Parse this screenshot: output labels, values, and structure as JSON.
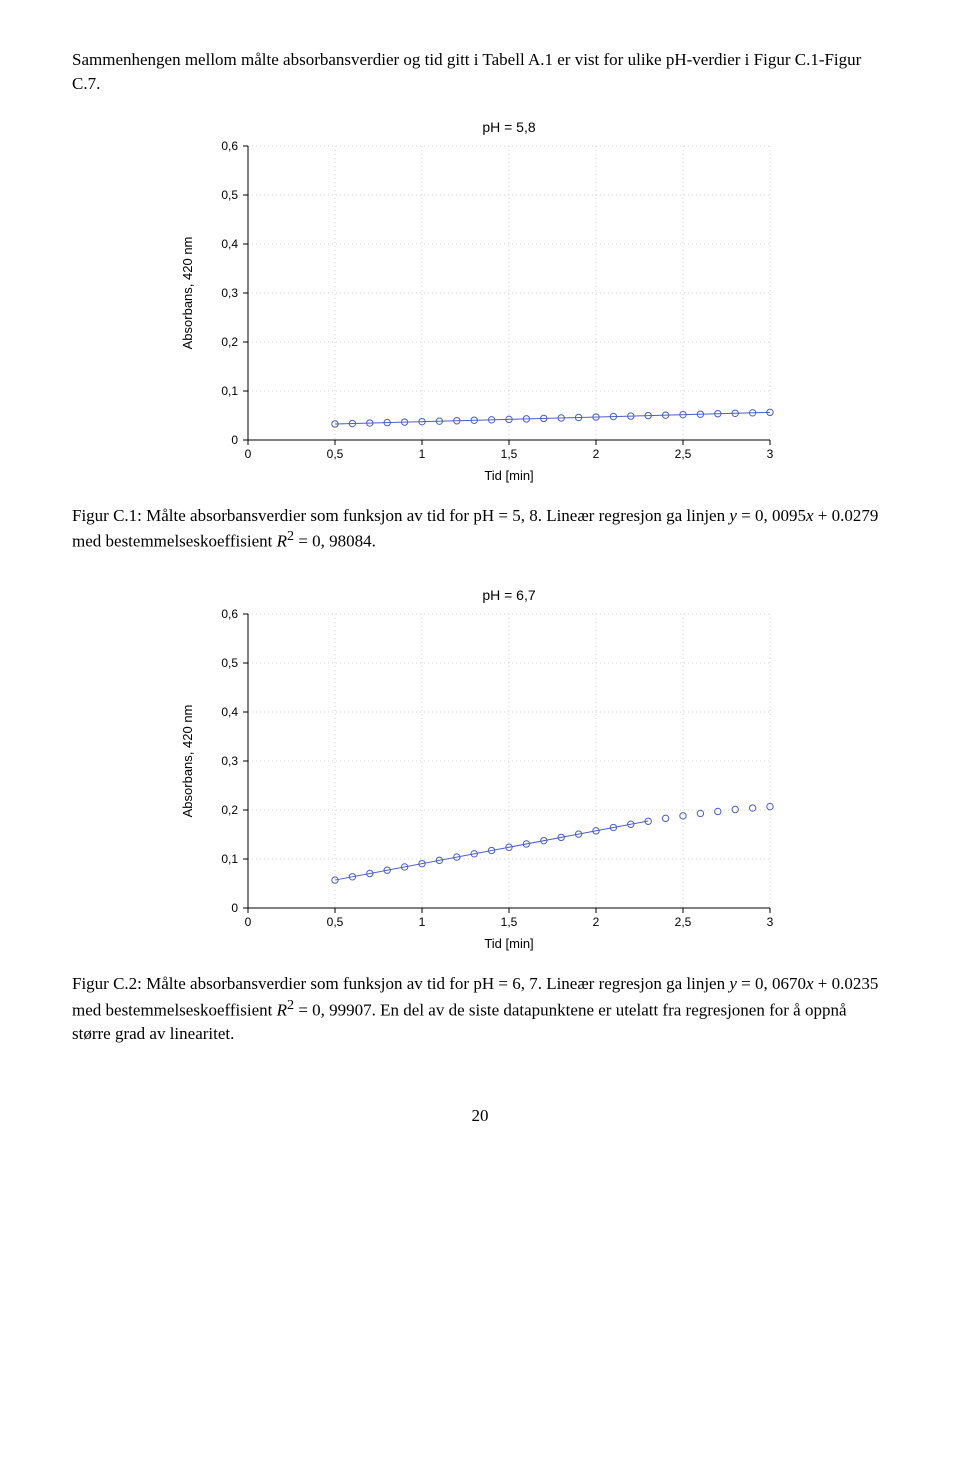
{
  "intro_text": "Sammenhengen mellom målte absorbansverdier og tid gitt i Tabell A.1 er vist for ulike pH-verdier i Figur C.1-Figur C.7.",
  "page_number": "20",
  "fig1": {
    "type": "scatter+line",
    "title": "pH = 5,8",
    "title_fontsize": 14,
    "xlabel": "Tid [min]",
    "ylabel": "Absorbans, 420 nm",
    "label_fontsize": 13,
    "tick_fontsize": 12,
    "xlim": [
      0,
      3
    ],
    "ylim": [
      0,
      0.6
    ],
    "xticks": [
      0,
      0.5,
      1,
      1.5,
      2,
      2.5,
      3
    ],
    "xtick_labels": [
      "0",
      "0,5",
      "1",
      "1,5",
      "2",
      "2,5",
      "3"
    ],
    "yticks": [
      0,
      0.1,
      0.2,
      0.3,
      0.4,
      0.5,
      0.6
    ],
    "ytick_labels": [
      "0",
      "0,1",
      "0,2",
      "0,3",
      "0,4",
      "0,5",
      "0,6"
    ],
    "marker_color": "#4a5ec8",
    "marker_radius": 3.2,
    "line_color": "#4a5ec8",
    "line_width": 1,
    "grid_color": "#d2d2d2",
    "axis_color": "#000000",
    "background_color": "#ffffff",
    "x": [
      0.5,
      0.6,
      0.7,
      0.8,
      0.9,
      1.0,
      1.1,
      1.2,
      1.3,
      1.4,
      1.5,
      1.6,
      1.7,
      1.8,
      1.9,
      2.0,
      2.1,
      2.2,
      2.3,
      2.4,
      2.5,
      2.6,
      2.7,
      2.8,
      2.9,
      3.0
    ],
    "y": [
      0.0327,
      0.0336,
      0.0346,
      0.0355,
      0.0365,
      0.0374,
      0.0384,
      0.0393,
      0.0403,
      0.0412,
      0.0422,
      0.0431,
      0.0441,
      0.045,
      0.046,
      0.0469,
      0.0479,
      0.0488,
      0.0498,
      0.0507,
      0.0517,
      0.0526,
      0.0536,
      0.0545,
      0.0555,
      0.0564
    ],
    "fit_slope": 0.0095,
    "fit_intercept": 0.0279,
    "fit_x0": 0.5,
    "fit_x1": 3.0,
    "caption_prefix": "Figur C.1: Målte absorbansverdier som funksjon av tid for pH = 5, 8. Lineær regresjon ga linjen ",
    "caption_eq1": "y",
    "caption_mid1": " = 0, 0095",
    "caption_eq2": "x",
    "caption_mid2": " + 0.0279 med bestemmelseskoeffisient ",
    "caption_eq3": "R",
    "caption_sup": "2",
    "caption_tail": " = 0, 98084."
  },
  "fig2": {
    "type": "scatter+line",
    "title": "pH = 6,7",
    "title_fontsize": 14,
    "xlabel": "Tid [min]",
    "ylabel": "Absorbans, 420 nm",
    "label_fontsize": 13,
    "tick_fontsize": 12,
    "xlim": [
      0,
      3
    ],
    "ylim": [
      0,
      0.6
    ],
    "xticks": [
      0,
      0.5,
      1,
      1.5,
      2,
      2.5,
      3
    ],
    "xtick_labels": [
      "0",
      "0,5",
      "1",
      "1,5",
      "2",
      "2,5",
      "3"
    ],
    "yticks": [
      0,
      0.1,
      0.2,
      0.3,
      0.4,
      0.5,
      0.6
    ],
    "ytick_labels": [
      "0",
      "0,1",
      "0,2",
      "0,3",
      "0,4",
      "0,5",
      "0,6"
    ],
    "marker_color": "#4a5ec8",
    "marker_radius": 3.2,
    "line_color": "#4a5ec8",
    "line_width": 1,
    "grid_color": "#d2d2d2",
    "axis_color": "#000000",
    "background_color": "#ffffff",
    "x": [
      0.5,
      0.6,
      0.7,
      0.8,
      0.9,
      1.0,
      1.1,
      1.2,
      1.3,
      1.4,
      1.5,
      1.6,
      1.7,
      1.8,
      1.9,
      2.0,
      2.1,
      2.2,
      2.3,
      2.4,
      2.5,
      2.6,
      2.7,
      2.8,
      2.9,
      3.0
    ],
    "y": [
      0.057,
      0.0637,
      0.0704,
      0.0771,
      0.0838,
      0.0905,
      0.0972,
      0.1039,
      0.1106,
      0.1173,
      0.124,
      0.1307,
      0.1374,
      0.1441,
      0.1508,
      0.1575,
      0.1642,
      0.1709,
      0.177,
      0.183,
      0.188,
      0.193,
      0.197,
      0.201,
      0.204,
      0.207
    ],
    "fit_slope": 0.067,
    "fit_intercept": 0.0235,
    "fit_x0": 0.5,
    "fit_x1": 2.3,
    "caption_prefix": "Figur C.2: Målte absorbansverdier som funksjon av tid for pH = 6, 7. Lineær regresjon ga linjen ",
    "caption_eq1": "y",
    "caption_mid1": " = 0, 0670",
    "caption_eq2": "x",
    "caption_mid2": " + 0.0235 med bestemmelseskoeffisient ",
    "caption_eq3": "R",
    "caption_sup": "2",
    "caption_tail": " = 0, 99907. En del av de siste datapunktene er utelatt fra regresjonen for å oppnå større grad av linearitet."
  }
}
